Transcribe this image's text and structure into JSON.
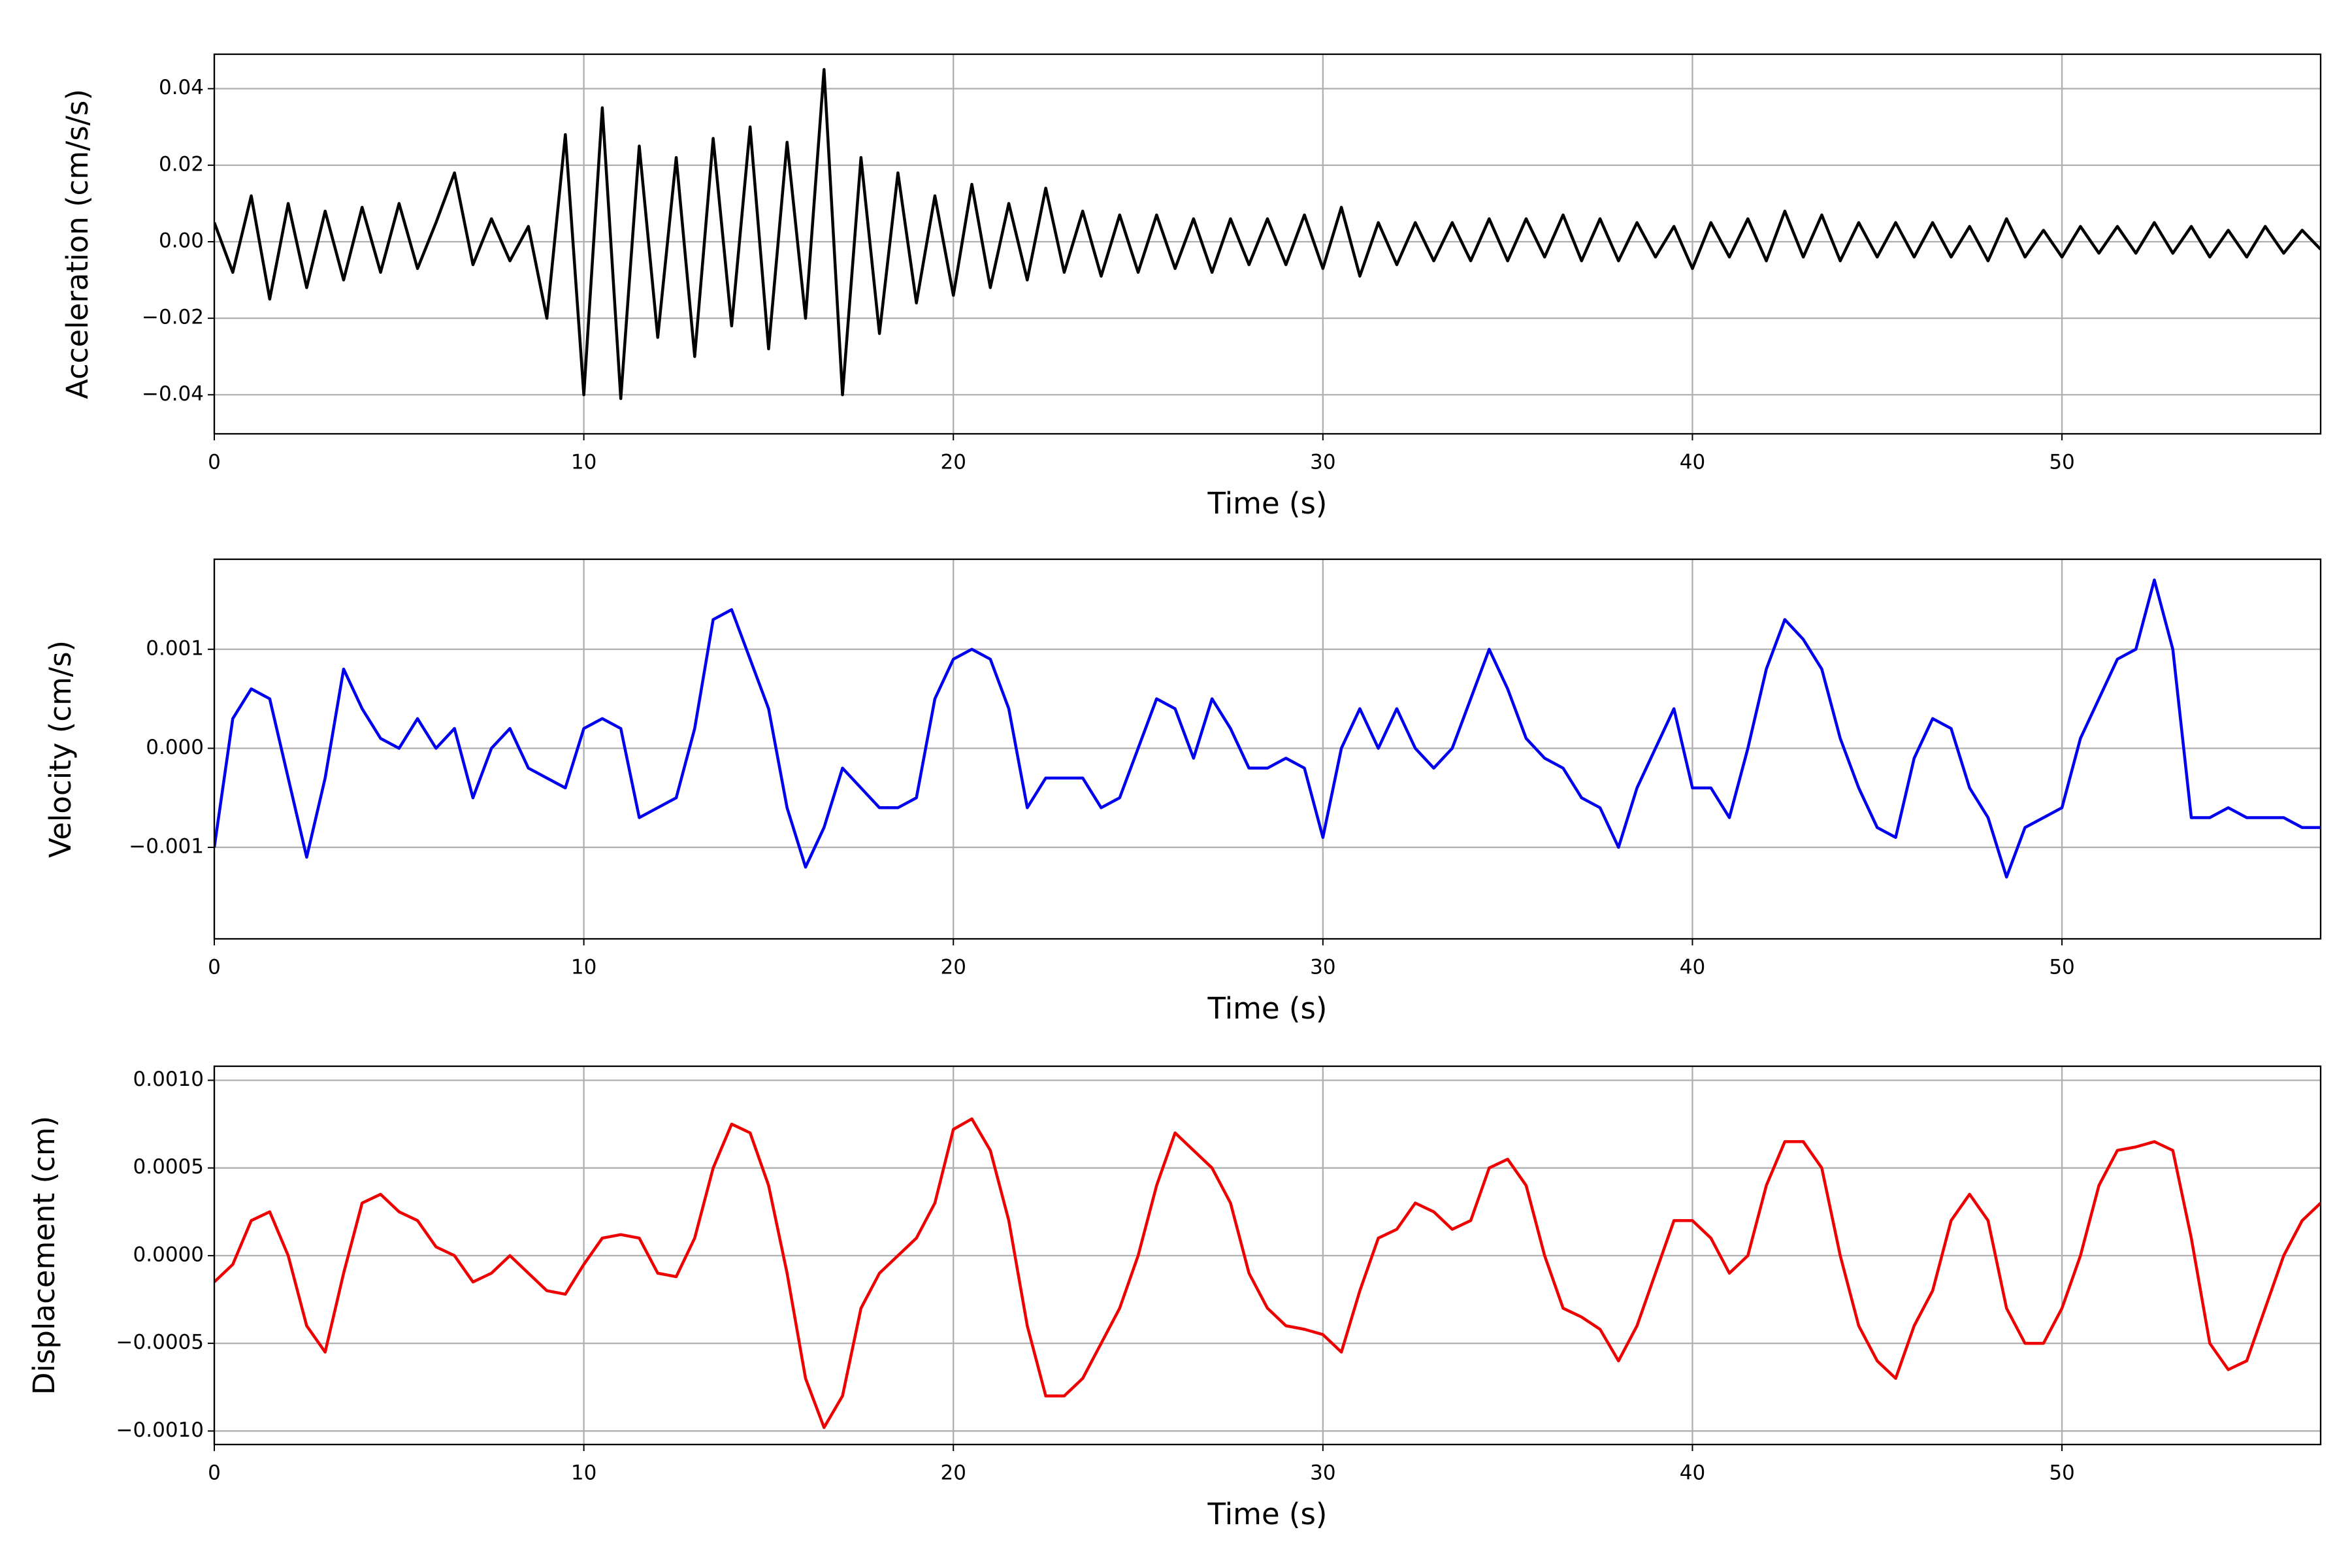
{
  "chart_data": [
    {
      "type": "line",
      "xlabel": "Time (s)",
      "ylabel": "Acceleration (cm/s/s)",
      "color": "#000000",
      "grid": true,
      "xlim": [
        0,
        57
      ],
      "xticks": [
        0,
        10,
        20,
        30,
        40,
        50
      ],
      "ylim": [
        -0.0502,
        0.049
      ],
      "yticks": [
        {
          "value": -0.04,
          "label": "−0.04"
        },
        {
          "value": -0.02,
          "label": "−0.02"
        },
        {
          "value": 0,
          "label": "0.00"
        },
        0.02,
        0.04
      ],
      "x": [
        0,
        0.5,
        1,
        1.5,
        2,
        2.5,
        3,
        3.5,
        4,
        4.5,
        5,
        5.5,
        6,
        6.5,
        7,
        7.5,
        8,
        8.5,
        9,
        9.5,
        10,
        10.5,
        11,
        11.5,
        12,
        12.5,
        13,
        13.5,
        14,
        14.5,
        15,
        15.5,
        16,
        16.5,
        17,
        17.5,
        18,
        18.5,
        19,
        19.5,
        20,
        20.5,
        21,
        21.5,
        22,
        22.5,
        23,
        23.5,
        24,
        24.5,
        25,
        25.5,
        26,
        26.5,
        27,
        27.5,
        28,
        28.5,
        29,
        29.5,
        30,
        30.5,
        31,
        31.5,
        32,
        32.5,
        33,
        33.5,
        34,
        34.5,
        35,
        35.5,
        36,
        36.5,
        37,
        37.5,
        38,
        38.5,
        39,
        39.5,
        40,
        40.5,
        41,
        41.5,
        42,
        42.5,
        43,
        43.5,
        44,
        44.5,
        45,
        45.5,
        46,
        46.5,
        47,
        47.5,
        48,
        48.5,
        49,
        49.5,
        50,
        50.5,
        51,
        51.5,
        52,
        52.5,
        53,
        53.5,
        54,
        54.5,
        55,
        55.5,
        56,
        56.5,
        57
      ],
      "values": [
        0.005,
        -0.008,
        0.012,
        -0.015,
        0.01,
        -0.012,
        0.008,
        -0.01,
        0.009,
        -0.008,
        0.01,
        -0.007,
        0.005,
        0.018,
        -0.006,
        0.006,
        -0.005,
        0.004,
        -0.02,
        0.028,
        -0.04,
        0.035,
        -0.041,
        0.025,
        -0.025,
        0.022,
        -0.03,
        0.027,
        -0.022,
        0.03,
        -0.028,
        0.026,
        -0.02,
        0.045,
        -0.04,
        0.022,
        -0.024,
        0.018,
        -0.016,
        0.012,
        -0.014,
        0.015,
        -0.012,
        0.01,
        -0.01,
        0.014,
        -0.008,
        0.008,
        -0.009,
        0.007,
        -0.008,
        0.007,
        -0.007,
        0.006,
        -0.008,
        0.006,
        -0.006,
        0.006,
        -0.006,
        0.007,
        -0.007,
        0.009,
        -0.009,
        0.005,
        -0.006,
        0.005,
        -0.005,
        0.005,
        -0.005,
        0.006,
        -0.005,
        0.006,
        -0.004,
        0.007,
        -0.005,
        0.006,
        -0.005,
        0.005,
        -0.004,
        0.004,
        -0.007,
        0.005,
        -0.004,
        0.006,
        -0.005,
        0.008,
        -0.004,
        0.007,
        -0.005,
        0.005,
        -0.004,
        0.005,
        -0.004,
        0.005,
        -0.004,
        0.004,
        -0.005,
        0.006,
        -0.004,
        0.003,
        -0.004,
        0.004,
        -0.003,
        0.004,
        -0.003,
        0.005,
        -0.003,
        0.004,
        -0.004,
        0.003,
        -0.004,
        0.004,
        -0.003,
        0.003,
        -0.002
      ]
    },
    {
      "type": "line",
      "xlabel": "Time (s)",
      "ylabel": "Velocity (cm/s)",
      "color": "#0000ee",
      "grid": true,
      "xlim": [
        0,
        57
      ],
      "xticks": [
        0,
        10,
        20,
        30,
        40,
        50
      ],
      "ylim": [
        -0.001924,
        0.001909
      ],
      "yticks": [
        {
          "value": -0.001,
          "label": "−0.001"
        },
        {
          "value": 0,
          "label": "0.000"
        },
        0.001
      ],
      "x": [
        0,
        0.5,
        1,
        1.5,
        2,
        2.5,
        3,
        3.5,
        4,
        4.5,
        5,
        5.5,
        6,
        6.5,
        7,
        7.5,
        8,
        8.5,
        9,
        9.5,
        10,
        10.5,
        11,
        11.5,
        12,
        12.5,
        13,
        13.5,
        14,
        14.5,
        15,
        15.5,
        16,
        16.5,
        17,
        17.5,
        18,
        18.5,
        19,
        19.5,
        20,
        20.5,
        21,
        21.5,
        22,
        22.5,
        23,
        23.5,
        24,
        24.5,
        25,
        25.5,
        26,
        26.5,
        27,
        27.5,
        28,
        28.5,
        29,
        29.5,
        30,
        30.5,
        31,
        31.5,
        32,
        32.5,
        33,
        33.5,
        34,
        34.5,
        35,
        35.5,
        36,
        36.5,
        37,
        37.5,
        38,
        38.5,
        39,
        39.5,
        40,
        40.5,
        41,
        41.5,
        42,
        42.5,
        43,
        43.5,
        44,
        44.5,
        45,
        45.5,
        46,
        46.5,
        47,
        47.5,
        48,
        48.5,
        49,
        49.5,
        50,
        50.5,
        51,
        51.5,
        52,
        52.5,
        53,
        53.5,
        54,
        54.5,
        55,
        55.5,
        56,
        56.5,
        57
      ],
      "values": [
        -0.001,
        0.0003,
        0.0006,
        0.0005,
        -0.0003,
        -0.0011,
        -0.0003,
        0.0008,
        0.0004,
        0.0001,
        0,
        0.0003,
        0,
        0.0002,
        -0.0005,
        0,
        0.0002,
        -0.0002,
        -0.0003,
        -0.0004,
        0.0002,
        0.0003,
        0.0002,
        -0.0007,
        -0.0006,
        -0.0005,
        0.0002,
        0.0013,
        0.0014,
        0.0009,
        0.0004,
        -0.0006,
        -0.0012,
        -0.0008,
        -0.0002,
        -0.0004,
        -0.0006,
        -0.0006,
        -0.0005,
        0.0005,
        0.0009,
        0.001,
        0.0009,
        0.0004,
        -0.0006,
        -0.0003,
        -0.0003,
        -0.0003,
        -0.0006,
        -0.0005,
        0,
        0.0005,
        0.0004,
        -0.0001,
        0.0005,
        0.0002,
        -0.0002,
        -0.0002,
        -0.0001,
        -0.0002,
        -0.0009,
        0,
        0.0004,
        0,
        0.0004,
        0,
        -0.0002,
        0,
        0.0005,
        0.001,
        0.0006,
        0.0001,
        -0.0001,
        -0.0002,
        -0.0005,
        -0.0006,
        -0.001,
        -0.0004,
        0,
        0.0004,
        -0.0004,
        -0.0004,
        -0.0007,
        0,
        0.0008,
        0.0013,
        0.0011,
        0.0008,
        0.0001,
        -0.0004,
        -0.0008,
        -0.0009,
        -0.0001,
        0.0003,
        0.0002,
        -0.0004,
        -0.0007,
        -0.0013,
        -0.0008,
        -0.0007,
        -0.0006,
        0.0001,
        0.0005,
        0.0009,
        0.001,
        0.0017,
        0.001,
        -0.0007,
        -0.0007,
        -0.0006,
        -0.0007,
        -0.0007,
        -0.0007,
        -0.0008,
        -0.0008
      ]
    },
    {
      "type": "line",
      "xlabel": "Time (s)",
      "ylabel": "Displacement (cm)",
      "color": "#ee0000",
      "grid": true,
      "xlim": [
        0,
        57
      ],
      "xticks": [
        0,
        10,
        20,
        30,
        40,
        50
      ],
      "ylim": [
        -0.001077,
        0.00108
      ],
      "yticks": [
        {
          "value": -0.001,
          "label": "−0.0010"
        },
        {
          "value": -0.0005,
          "label": "−0.0005"
        },
        {
          "value": 0,
          "label": "0.0000"
        },
        {
          "value": 0.0005,
          "label": "0.0005"
        },
        {
          "value": 0.001,
          "label": "0.0010"
        }
      ],
      "x": [
        0,
        0.5,
        1,
        1.5,
        2,
        2.5,
        3,
        3.5,
        4,
        4.5,
        5,
        5.5,
        6,
        6.5,
        7,
        7.5,
        8,
        8.5,
        9,
        9.5,
        10,
        10.5,
        11,
        11.5,
        12,
        12.5,
        13,
        13.5,
        14,
        14.5,
        15,
        15.5,
        16,
        16.5,
        17,
        17.5,
        18,
        18.5,
        19,
        19.5,
        20,
        20.5,
        21,
        21.5,
        22,
        22.5,
        23,
        23.5,
        24,
        24.5,
        25,
        25.5,
        26,
        26.5,
        27,
        27.5,
        28,
        28.5,
        29,
        29.5,
        30,
        30.5,
        31,
        31.5,
        32,
        32.5,
        33,
        33.5,
        34,
        34.5,
        35,
        35.5,
        36,
        36.5,
        37,
        37.5,
        38,
        38.5,
        39,
        39.5,
        40,
        40.5,
        41,
        41.5,
        42,
        42.5,
        43,
        43.5,
        44,
        44.5,
        45,
        45.5,
        46,
        46.5,
        47,
        47.5,
        48,
        48.5,
        49,
        49.5,
        50,
        50.5,
        51,
        51.5,
        52,
        52.5,
        53,
        53.5,
        54,
        54.5,
        55,
        55.5,
        56,
        56.5,
        57
      ],
      "values": [
        -0.00015,
        -5e-05,
        0.0002,
        0.00025,
        0,
        -0.0004,
        -0.00055,
        -0.0001,
        0.0003,
        0.00035,
        0.00025,
        0.0002,
        5e-05,
        0,
        -0.00015,
        -0.0001,
        0,
        -0.0001,
        -0.0002,
        -0.00022,
        -5e-05,
        0.0001,
        0.00012,
        0.0001,
        -0.0001,
        -0.00012,
        0.0001,
        0.0005,
        0.00075,
        0.0007,
        0.0004,
        -0.0001,
        -0.0007,
        -0.00098,
        -0.0008,
        -0.0003,
        -0.0001,
        0,
        0.0001,
        0.0003,
        0.00072,
        0.00078,
        0.0006,
        0.0002,
        -0.0004,
        -0.0008,
        -0.0008,
        -0.0007,
        -0.0005,
        -0.0003,
        0,
        0.0004,
        0.0007,
        0.0006,
        0.0005,
        0.0003,
        -0.0001,
        -0.0003,
        -0.0004,
        -0.00042,
        -0.00045,
        -0.00055,
        -0.0002,
        0.0001,
        0.00015,
        0.0003,
        0.00025,
        0.00015,
        0.0002,
        0.0005,
        0.00055,
        0.0004,
        0,
        -0.0003,
        -0.00035,
        -0.00042,
        -0.0006,
        -0.0004,
        -0.0001,
        0.0002,
        0.0002,
        0.0001,
        -0.0001,
        0,
        0.0004,
        0.00065,
        0.00065,
        0.0005,
        0,
        -0.0004,
        -0.0006,
        -0.0007,
        -0.0004,
        -0.0002,
        0.0002,
        0.00035,
        0.0002,
        -0.0003,
        -0.0005,
        -0.0005,
        -0.0003,
        0,
        0.0004,
        0.0006,
        0.00062,
        0.00065,
        0.0006,
        0.0001,
        -0.0005,
        -0.00065,
        -0.0006,
        -0.0003,
        0,
        0.0002,
        0.0003
      ]
    }
  ]
}
